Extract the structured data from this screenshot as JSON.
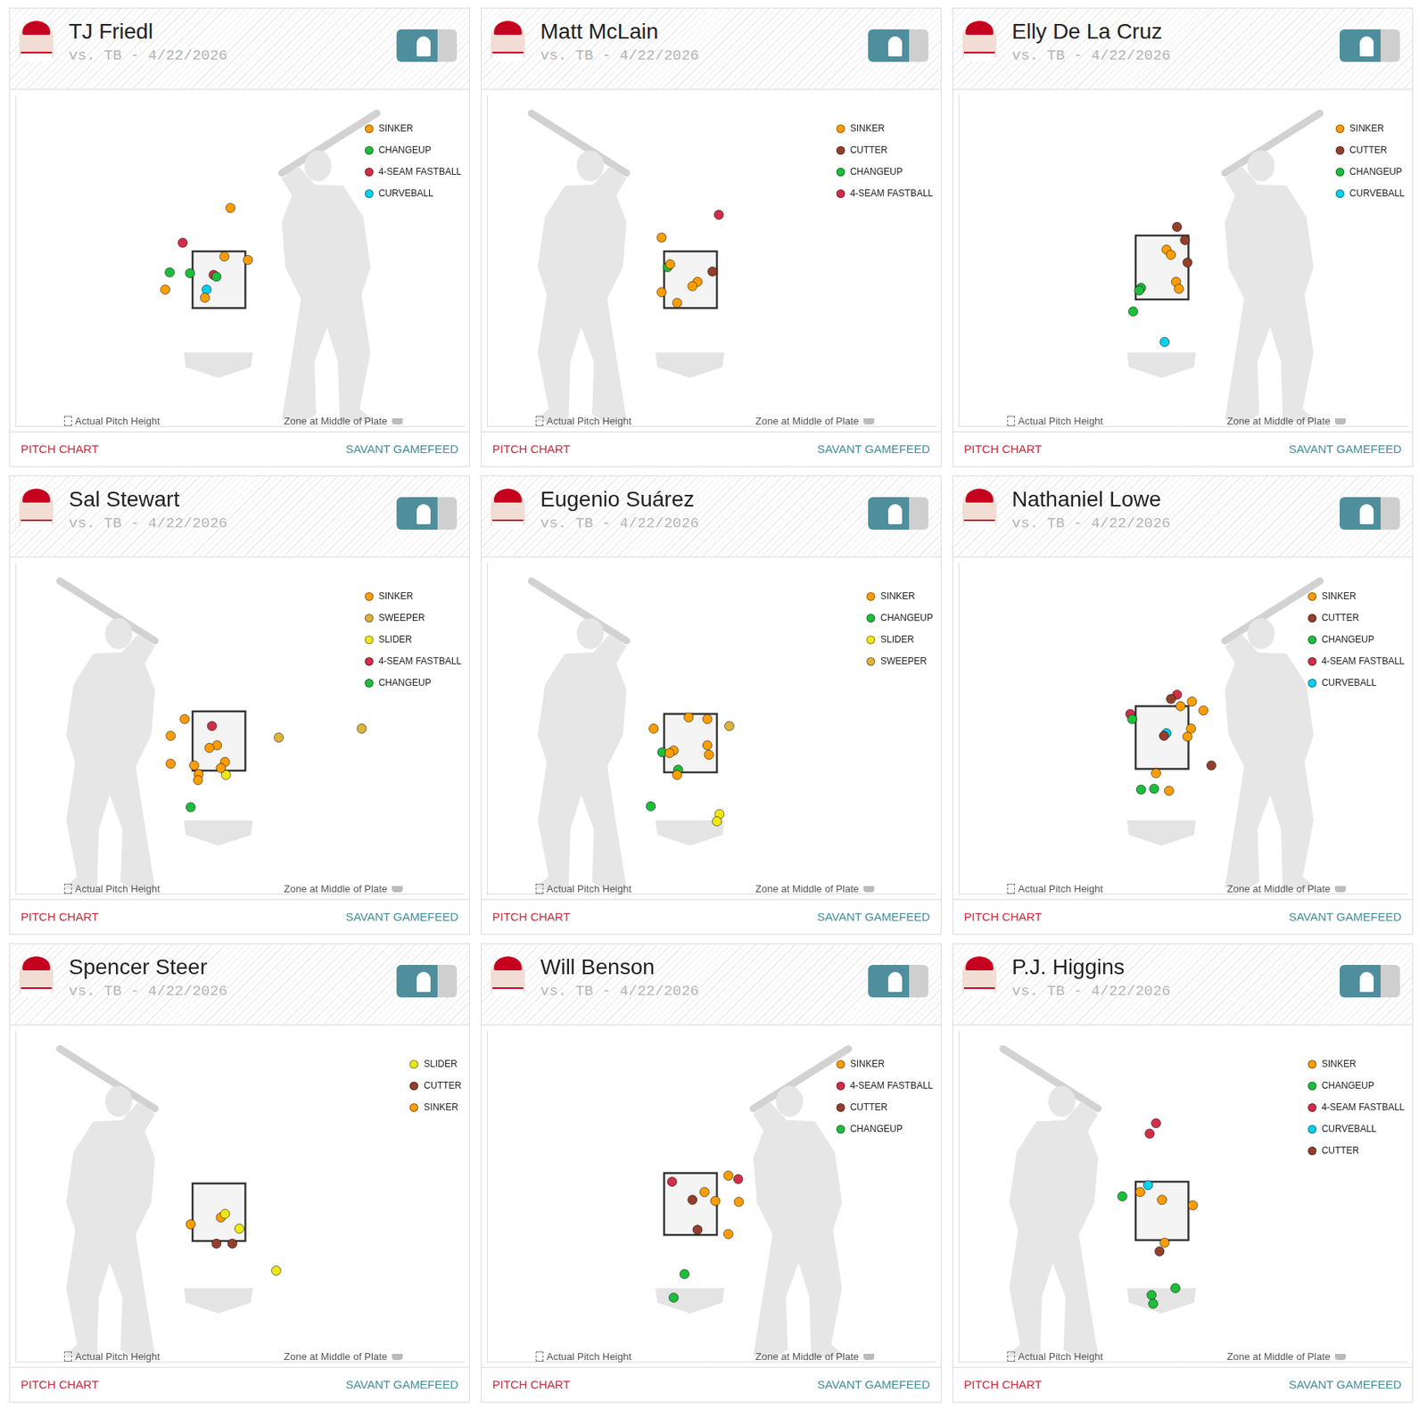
{
  "chart_data": [
    {
      "type": "scatter",
      "title": "TJ Friedl",
      "subtitle": "vs. TB - 4/22/2026",
      "xlim": [
        -6.4,
        7.7
      ],
      "ylim": [
        -2.6,
        8.9
      ],
      "tick_labels": false,
      "grid": false,
      "legend": "upper right",
      "marker": "circle",
      "zone": {
        "x": [
          -0.83,
          0.83
        ],
        "y": [
          1.5,
          3.47
        ]
      },
      "annotations": [
        "Actual Pitch Height",
        "Zone at Middle of Plate"
      ],
      "footer": [
        "PITCH CHART",
        "SAVANT GAMEFEED"
      ],
      "series": [
        {
          "name": "SINKER",
          "color": "#FE9D00",
          "x": [
            0.36,
            0.17,
            0.91,
            -1.69,
            -0.44
          ],
          "y": [
            4.98,
            3.29,
            3.17,
            2.14,
            1.86
          ]
        },
        {
          "name": "CHANGEUP",
          "color": "#1DBE3A",
          "x": [
            -1.55,
            -0.91,
            -0.08
          ],
          "y": [
            2.74,
            2.71,
            2.59
          ]
        },
        {
          "name": "4-SEAM FASTBALL",
          "color": "#D22D49",
          "x": [
            -1.14,
            -0.17
          ],
          "y": [
            3.77,
            2.65
          ]
        },
        {
          "name": "CURVEBALL",
          "color": "#00D1ED",
          "x": [
            -0.39
          ],
          "y": [
            2.14
          ]
        }
      ]
    },
    {
      "type": "scatter",
      "title": "Matt McLain",
      "subtitle": "vs. TB - 4/22/2026",
      "xlim": [
        -6.4,
        7.7
      ],
      "ylim": [
        -2.6,
        8.9
      ],
      "tick_labels": false,
      "grid": false,
      "legend": "upper right",
      "marker": "circle",
      "zone": {
        "x": [
          -0.83,
          0.83
        ],
        "y": [
          1.5,
          3.47
        ]
      },
      "annotations": [
        "Actual Pitch Height",
        "Zone at Middle of Plate"
      ],
      "footer": [
        "PITCH CHART",
        "SAVANT GAMEFEED"
      ],
      "series": [
        {
          "name": "SINKER",
          "color": "#FE9D00",
          "x": [
            -0.91,
            -0.64,
            0.22,
            0.06,
            -0.91,
            -0.42
          ],
          "y": [
            3.95,
            3.02,
            2.41,
            2.26,
            2.05,
            1.68
          ]
        },
        {
          "name": "CUTTER",
          "color": "#933F2C",
          "x": [
            0.69
          ],
          "y": [
            2.77
          ]
        },
        {
          "name": "CHANGEUP",
          "color": "#1DBE3A",
          "x": [
            -0.72
          ],
          "y": [
            2.92
          ]
        },
        {
          "name": "4-SEAM FASTBALL",
          "color": "#D22D49",
          "x": [
            0.89
          ],
          "y": [
            4.74
          ]
        }
      ]
    },
    {
      "type": "scatter",
      "title": "Elly De La Cruz",
      "subtitle": "vs. TB - 4/22/2026",
      "xlim": [
        -6.4,
        7.7
      ],
      "ylim": [
        -2.6,
        8.9
      ],
      "tick_labels": false,
      "grid": false,
      "legend": "upper right",
      "marker": "circle",
      "zone": {
        "x": [
          -0.83,
          0.83
        ],
        "y": [
          1.8,
          4.02
        ]
      },
      "annotations": [
        "Actual Pitch Height",
        "Zone at Middle of Plate"
      ],
      "footer": [
        "PITCH CHART",
        "SAVANT GAMEFEED"
      ],
      "series": [
        {
          "name": "SINKER",
          "color": "#FE9D00",
          "x": [
            0.14,
            0.28,
            0.44,
            0.53
          ],
          "y": [
            3.53,
            3.35,
            2.41,
            2.17
          ]
        },
        {
          "name": "CUTTER",
          "color": "#933F2C",
          "x": [
            0.47,
            0.72,
            0.8
          ],
          "y": [
            4.32,
            3.86,
            3.08
          ]
        },
        {
          "name": "CHANGEUP",
          "color": "#1DBE3A",
          "x": [
            -0.66,
            -0.72,
            -0.91
          ],
          "y": [
            2.2,
            2.11,
            1.38
          ]
        },
        {
          "name": "CURVEBALL",
          "color": "#00D1ED",
          "x": [
            0.08
          ],
          "y": [
            0.32
          ]
        }
      ]
    },
    {
      "type": "scatter",
      "title": "Sal Stewart",
      "subtitle": "vs. TB - 4/22/2026",
      "xlim": [
        -6.4,
        7.7
      ],
      "ylim": [
        -2.6,
        8.9
      ],
      "tick_labels": false,
      "grid": false,
      "legend": "upper right",
      "marker": "circle",
      "zone": {
        "x": [
          -0.83,
          0.83
        ],
        "y": [
          1.68,
          3.74
        ]
      },
      "annotations": [
        "Actual Pitch Height",
        "Zone at Middle of Plate"
      ],
      "footer": [
        "PITCH CHART",
        "SAVANT GAMEFEED"
      ],
      "series": [
        {
          "name": "SINKER",
          "color": "#FE9D00",
          "x": [
            -1.08,
            -1.52,
            -0.06,
            -0.3,
            0.19,
            -1.52,
            -0.78,
            0.06,
            -0.64,
            -0.66
          ],
          "y": [
            3.47,
            2.89,
            2.56,
            2.47,
            1.98,
            1.92,
            1.86,
            1.77,
            1.56,
            1.35
          ]
        },
        {
          "name": "SWEEPER",
          "color": "#DDB33A",
          "x": [
            1.88,
            4.49
          ],
          "y": [
            2.83,
            3.14
          ]
        },
        {
          "name": "SLIDER",
          "color": "#EEE716",
          "x": [
            0.22
          ],
          "y": [
            1.53
          ]
        },
        {
          "name": "4-SEAM FASTBALL",
          "color": "#D22D49",
          "x": [
            -0.22
          ],
          "y": [
            3.23
          ]
        },
        {
          "name": "CHANGEUP",
          "color": "#1DBE3A",
          "x": [
            -0.89
          ],
          "y": [
            0.41
          ]
        }
      ]
    },
    {
      "type": "scatter",
      "title": "Eugenio Suárez",
      "subtitle": "vs. TB - 4/22/2026",
      "xlim": [
        -6.4,
        7.7
      ],
      "ylim": [
        -2.6,
        8.9
      ],
      "tick_labels": false,
      "grid": false,
      "legend": "upper right",
      "marker": "circle",
      "zone": {
        "x": [
          -0.83,
          0.83
        ],
        "y": [
          1.62,
          3.65
        ]
      },
      "annotations": [
        "Actual Pitch Height",
        "Zone at Middle of Plate"
      ],
      "footer": [
        "PITCH CHART",
        "SAVANT GAMEFEED"
      ],
      "series": [
        {
          "name": "SINKER",
          "color": "#FE9D00",
          "x": [
            -0.06,
            0.53,
            -1.16,
            0.53,
            -0.53,
            -0.66,
            0.58,
            -0.42
          ],
          "y": [
            3.53,
            3.47,
            3.14,
            2.56,
            2.38,
            2.29,
            2.23,
            1.53
          ]
        },
        {
          "name": "CHANGEUP",
          "color": "#1DBE3A",
          "x": [
            -0.89,
            -0.39,
            -1.25
          ],
          "y": [
            2.32,
            1.71,
            0.44
          ]
        },
        {
          "name": "SLIDER",
          "color": "#EEE716",
          "x": [
            0.91,
            0.83
          ],
          "y": [
            0.17,
            -0.08
          ]
        },
        {
          "name": "SWEEPER",
          "color": "#DDB33A",
          "x": [
            1.22
          ],
          "y": [
            3.23
          ]
        }
      ]
    },
    {
      "type": "scatter",
      "title": "Nathaniel Lowe",
      "subtitle": "vs. TB - 4/22/2026",
      "xlim": [
        -6.4,
        7.7
      ],
      "ylim": [
        -2.6,
        8.9
      ],
      "tick_labels": false,
      "grid": false,
      "legend": "upper right",
      "marker": "circle",
      "zone": {
        "x": [
          -0.83,
          0.83
        ],
        "y": [
          1.74,
          3.92
        ]
      },
      "annotations": [
        "Actual Pitch Height",
        "Zone at Middle of Plate"
      ],
      "footer": [
        "PITCH CHART",
        "SAVANT GAMEFEED"
      ],
      "series": [
        {
          "name": "SINKER",
          "color": "#FE9D00",
          "x": [
            0.94,
            0.58,
            1.3,
            0.91,
            0.8,
            -0.19,
            0.22
          ],
          "y": [
            4.08,
            3.92,
            3.77,
            3.14,
            2.86,
            1.59,
            0.98
          ]
        },
        {
          "name": "CUTTER",
          "color": "#933F2C",
          "x": [
            0.28,
            0.06,
            1.55
          ],
          "y": [
            4.17,
            2.89,
            1.86
          ]
        },
        {
          "name": "CHANGEUP",
          "color": "#1DBE3A",
          "x": [
            -0.94,
            -0.66,
            -0.25
          ],
          "y": [
            3.47,
            1.02,
            1.05
          ]
        },
        {
          "name": "4-SEAM FASTBALL",
          "color": "#D22D49",
          "x": [
            0.47,
            -1.0
          ],
          "y": [
            4.32,
            3.65
          ]
        },
        {
          "name": "CURVEBALL",
          "color": "#00D1ED",
          "x": [
            0.14
          ],
          "y": [
            2.98
          ]
        }
      ]
    },
    {
      "type": "scatter",
      "title": "Spencer Steer",
      "subtitle": "vs. TB - 4/22/2026",
      "xlim": [
        -6.4,
        7.7
      ],
      "ylim": [
        -2.6,
        8.9
      ],
      "tick_labels": false,
      "grid": false,
      "legend": "upper right",
      "marker": "circle",
      "zone": {
        "x": [
          -0.83,
          0.83
        ],
        "y": [
          1.59,
          3.59
        ]
      },
      "annotations": [
        "Actual Pitch Height",
        "Zone at Middle of Plate"
      ],
      "footer": [
        "PITCH CHART",
        "SAVANT GAMEFEED"
      ],
      "series": [
        {
          "name": "SLIDER",
          "color": "#EEE716",
          "x": [
            0.19,
            0.64,
            1.8
          ],
          "y": [
            2.53,
            2.02,
            0.56
          ]
        },
        {
          "name": "CUTTER",
          "color": "#933F2C",
          "x": [
            -0.08,
            0.42
          ],
          "y": [
            1.5,
            1.5
          ]
        },
        {
          "name": "SINKER",
          "color": "#FE9D00",
          "x": [
            0.06,
            -0.89
          ],
          "y": [
            2.41,
            2.17
          ]
        }
      ]
    },
    {
      "type": "scatter",
      "title": "Will Benson",
      "subtitle": "vs. TB - 4/22/2026",
      "xlim": [
        -6.4,
        7.7
      ],
      "ylim": [
        -2.6,
        8.9
      ],
      "tick_labels": false,
      "grid": false,
      "legend": "upper right",
      "marker": "circle",
      "zone": {
        "x": [
          -0.83,
          0.83
        ],
        "y": [
          1.8,
          3.95
        ]
      },
      "annotations": [
        "Actual Pitch Height",
        "Zone at Middle of Plate"
      ],
      "footer": [
        "PITCH CHART",
        "SAVANT GAMEFEED"
      ],
      "series": [
        {
          "name": "SINKER",
          "color": "#FE9D00",
          "x": [
            1.19,
            0.44,
            0.78,
            1.52,
            1.19
          ],
          "y": [
            3.86,
            3.29,
            2.98,
            2.95,
            1.83
          ]
        },
        {
          "name": "4-SEAM FASTBALL",
          "color": "#D22D49",
          "x": [
            1.5,
            -0.58
          ],
          "y": [
            3.74,
            3.65
          ]
        },
        {
          "name": "CUTTER",
          "color": "#933F2C",
          "x": [
            0.06,
            0.22
          ],
          "y": [
            3.02,
            1.98
          ]
        },
        {
          "name": "CHANGEUP",
          "color": "#1DBE3A",
          "x": [
            -0.19,
            -0.53
          ],
          "y": [
            0.44,
            -0.38
          ]
        }
      ]
    },
    {
      "type": "scatter",
      "title": "P.J. Higgins",
      "subtitle": "vs. TB - 4/22/2026",
      "xlim": [
        -6.4,
        7.7
      ],
      "ylim": [
        -2.6,
        8.9
      ],
      "tick_labels": false,
      "grid": false,
      "legend": "upper right",
      "marker": "circle",
      "zone": {
        "x": [
          -0.83,
          0.83
        ],
        "y": [
          1.62,
          3.65
        ]
      },
      "annotations": [
        "Actual Pitch Height",
        "Zone at Middle of Plate"
      ],
      "footer": [
        "PITCH CHART",
        "SAVANT GAMEFEED"
      ],
      "series": [
        {
          "name": "SINKER",
          "color": "#FE9D00",
          "x": [
            -0.69,
            0.97,
            0.0,
            0.08
          ],
          "y": [
            3.29,
            2.83,
            3.02,
            1.53
          ]
        },
        {
          "name": "CHANGEUP",
          "color": "#1DBE3A",
          "x": [
            -1.25,
            0.42,
            -0.33,
            -0.28
          ],
          "y": [
            3.14,
            -0.05,
            -0.29,
            -0.59
          ]
        },
        {
          "name": "4-SEAM FASTBALL",
          "color": "#D22D49",
          "x": [
            -0.19,
            -0.39
          ],
          "y": [
            5.68,
            5.32
          ]
        },
        {
          "name": "CURVEBALL",
          "color": "#00D1ED",
          "x": [
            -0.44
          ],
          "y": [
            3.53
          ]
        },
        {
          "name": "CUTTER",
          "color": "#933F2C",
          "x": [
            -0.08
          ],
          "y": [
            1.23
          ]
        }
      ]
    }
  ]
}
